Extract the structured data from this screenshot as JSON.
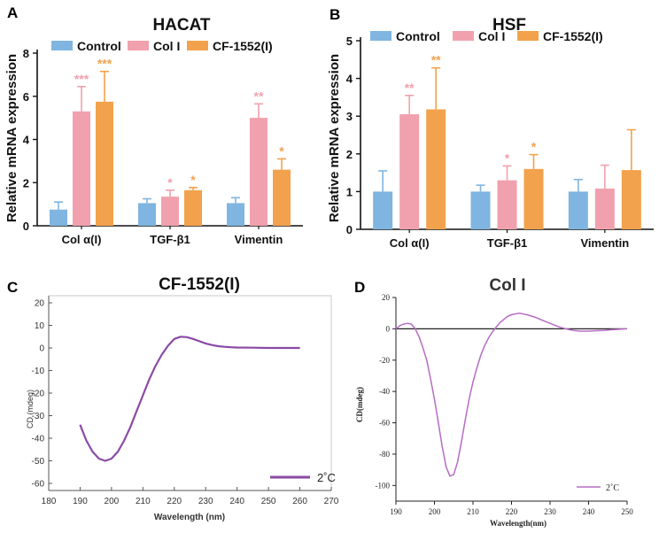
{
  "colors": {
    "control": "#7fb5e0",
    "col1": "#f1a1ad",
    "cf": "#f2a24c",
    "cd_c": "#8b4aa5",
    "cd_d": "#b66bc4",
    "axis": "#111111"
  },
  "panels": {
    "a": "A",
    "b": "B",
    "c": "C",
    "d": "D"
  },
  "chart_data": [
    {
      "type": "bar",
      "title": "HACAT",
      "ylabel": "Relative mRNA expression",
      "xlabel": "",
      "ylim": [
        0,
        8
      ],
      "yticks": [
        "0",
        "2",
        "4",
        "6",
        "8"
      ],
      "categories": [
        "Col α(I)",
        "TGF-β1",
        "Vimentin"
      ],
      "legend_position": "top",
      "series": [
        {
          "name": "Control",
          "values": [
            0.75,
            1.05,
            1.05
          ],
          "errors": [
            0.35,
            0.2,
            0.25
          ],
          "sig": [
            "",
            "",
            ""
          ]
        },
        {
          "name": "Col I",
          "values": [
            5.3,
            1.35,
            5.0
          ],
          "errors": [
            1.15,
            0.3,
            0.65
          ],
          "sig": [
            "***",
            "*",
            "**"
          ]
        },
        {
          "name": "CF-1552(I)",
          "values": [
            5.75,
            1.65,
            2.6
          ],
          "errors": [
            1.4,
            0.12,
            0.5
          ],
          "sig": [
            "***",
            "*",
            "*"
          ]
        }
      ]
    },
    {
      "type": "bar",
      "title": "HSF",
      "ylabel": "Relative mRNA expression",
      "xlabel": "",
      "ylim": [
        0,
        5
      ],
      "yticks": [
        "0",
        "1",
        "2",
        "3",
        "4",
        "5"
      ],
      "categories": [
        "Col α(I)",
        "TGF-β1",
        "Vimentin"
      ],
      "legend_position": "top",
      "series": [
        {
          "name": "Control",
          "values": [
            1.0,
            1.0,
            1.0
          ],
          "errors": [
            0.55,
            0.17,
            0.32
          ],
          "sig": [
            "",
            "",
            ""
          ]
        },
        {
          "name": "Col I",
          "values": [
            3.05,
            1.3,
            1.08
          ],
          "errors": [
            0.5,
            0.38,
            0.62
          ],
          "sig": [
            "**",
            "*",
            ""
          ]
        },
        {
          "name": "CF-1552(I)",
          "values": [
            3.18,
            1.6,
            1.57
          ],
          "errors": [
            1.1,
            0.38,
            1.07
          ],
          "sig": [
            "**",
            "*",
            ""
          ]
        }
      ]
    },
    {
      "type": "line",
      "title": "CF-1552(I)",
      "xlabel": "Wavelength (nm)",
      "ylabel": "CD (mdeg)",
      "xlim": [
        180,
        270
      ],
      "ylim": [
        -60,
        20
      ],
      "xticks": [
        "180",
        "190",
        "200",
        "210",
        "220",
        "230",
        "240",
        "250",
        "260",
        "270"
      ],
      "yticks": [
        "20",
        "10",
        "0",
        "-10",
        "-20",
        "-30",
        "-40",
        "-50",
        "-60"
      ],
      "legend_position": "bottom-right",
      "series": [
        {
          "name": "2˚C",
          "x": [
            190,
            192,
            194,
            196,
            198,
            200,
            202,
            204,
            206,
            208,
            210,
            212,
            214,
            216,
            218,
            220,
            222,
            224,
            226,
            228,
            230,
            232,
            234,
            236,
            238,
            240,
            245,
            250,
            255,
            260
          ],
          "y": [
            -34,
            -41,
            -46,
            -49,
            -50,
            -49,
            -46,
            -41,
            -35,
            -28,
            -21,
            -14,
            -8,
            -3,
            1,
            4,
            5,
            4.8,
            4,
            3,
            2,
            1.3,
            0.8,
            0.5,
            0.3,
            0.2,
            0.1,
            0,
            0,
            0
          ]
        }
      ]
    },
    {
      "type": "line",
      "title": "Col I",
      "xlabel": "Wavelength(nm)",
      "ylabel": "CD(mdeg)",
      "xlim": [
        190,
        250
      ],
      "ylim": [
        -110,
        20
      ],
      "xticks": [
        "190",
        "200",
        "210",
        "220",
        "230",
        "240",
        "250"
      ],
      "yticks": [
        "20",
        "0",
        "-20",
        "-40",
        "-60",
        "-80",
        "-100"
      ],
      "legend_position": "bottom-right",
      "series": [
        {
          "name": "2˚C",
          "x": [
            190,
            191,
            192,
            193,
            194,
            195,
            196,
            197,
            198,
            199,
            200,
            201,
            202,
            203,
            204,
            205,
            206,
            207,
            208,
            209,
            210,
            211,
            212,
            213,
            214,
            215,
            216,
            217,
            218,
            219,
            220,
            222,
            224,
            226,
            228,
            230,
            232,
            234,
            236,
            238,
            240,
            242,
            244,
            246,
            248,
            250
          ],
          "y": [
            0,
            2,
            3,
            3.5,
            3,
            0,
            -5,
            -12,
            -20,
            -32,
            -45,
            -60,
            -75,
            -88,
            -94,
            -93,
            -85,
            -72,
            -58,
            -45,
            -34,
            -25,
            -17,
            -11,
            -6,
            -2,
            1,
            4,
            6,
            8,
            9,
            10,
            9,
            7.5,
            5.5,
            3.5,
            1.5,
            0,
            -1,
            -1.5,
            -1.5,
            -1.2,
            -1,
            -0.6,
            -0.3,
            0
          ]
        }
      ]
    }
  ]
}
